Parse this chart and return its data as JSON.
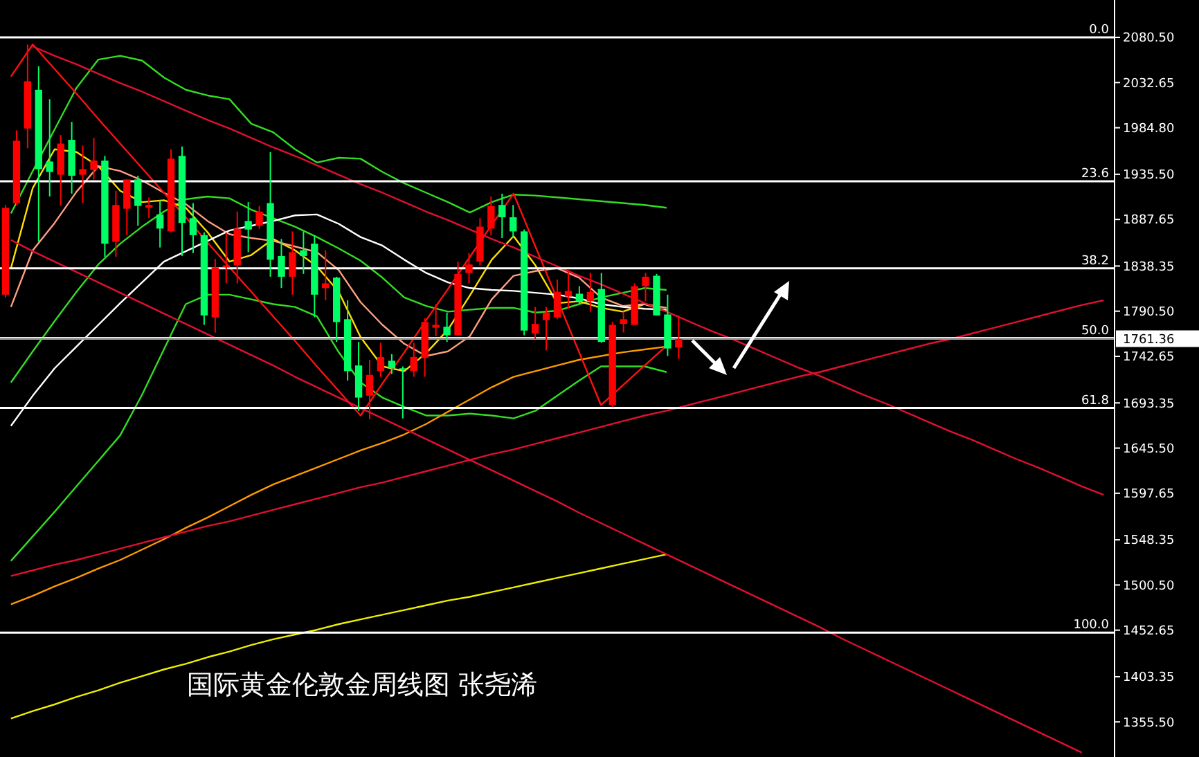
{
  "chart_data": [
    {
      "type": "candlestick",
      "title": "国际黄金伦敦金周线图 张尧浠",
      "categories": [
        null,
        null,
        null,
        null,
        null,
        null,
        null,
        null,
        null,
        null,
        null,
        null,
        null,
        null,
        null,
        null,
        null,
        null,
        null,
        null,
        null,
        null,
        null,
        null,
        null,
        null,
        null,
        null,
        null,
        null,
        null,
        null,
        null,
        null,
        null,
        null,
        null,
        null,
        null,
        null,
        null,
        null,
        null,
        null,
        null,
        null,
        null,
        null,
        null,
        null,
        null,
        null,
        null,
        null,
        null,
        null,
        null,
        null,
        null,
        null,
        null,
        null,
        null,
        null,
        null,
        null,
        null,
        null,
        null,
        null,
        null,
        null,
        null,
        null,
        null,
        null,
        null,
        null,
        null,
        null,
        null,
        null,
        null,
        null,
        null,
        null,
        null,
        null,
        null,
        null,
        null,
        null,
        null,
        null,
        null,
        null,
        null,
        null,
        null,
        null,
        null
      ],
      "ohlc": [
        [
          1808,
          1903,
          1805,
          1900
        ],
        [
          1905,
          1982,
          1903,
          1971
        ],
        [
          1984,
          2073,
          1963,
          2034
        ],
        [
          2025,
          2050,
          1864,
          1941
        ],
        [
          1949,
          2015,
          1912,
          1938
        ],
        [
          1935,
          1977,
          1902,
          1968
        ],
        [
          1972,
          1991,
          1915,
          1934
        ],
        [
          1935,
          1966,
          1905,
          1941
        ],
        [
          1940,
          1974,
          1930,
          1950
        ],
        [
          1950,
          1955,
          1848,
          1862
        ],
        [
          1864,
          1918,
          1848,
          1903
        ],
        [
          1899,
          1930,
          1871,
          1930
        ],
        [
          1930,
          1934,
          1881,
          1902
        ],
        [
          1900,
          1911,
          1889,
          1903
        ],
        [
          1893,
          1908,
          1858,
          1878
        ],
        [
          1875,
          1962,
          1874,
          1952
        ],
        [
          1955,
          1965,
          1849,
          1884
        ],
        [
          1889,
          1905,
          1852,
          1871
        ],
        [
          1871,
          1874,
          1776,
          1786
        ],
        [
          1784,
          1846,
          1768,
          1837
        ],
        [
          1837,
          1874,
          1820,
          1839
        ],
        [
          1839,
          1896,
          1820,
          1878
        ],
        [
          1886,
          1906,
          1853,
          1877
        ],
        [
          1881,
          1902,
          1878,
          1896
        ],
        [
          1905,
          1959,
          1827,
          1845
        ],
        [
          1849,
          1867,
          1815,
          1827
        ],
        [
          1827,
          1875,
          1808,
          1853
        ],
        [
          1855,
          1875,
          1830,
          1849
        ],
        [
          1862,
          1871,
          1784,
          1808
        ],
        [
          1815,
          1855,
          1802,
          1820
        ],
        [
          1826,
          1827,
          1758,
          1779
        ],
        [
          1782,
          1802,
          1717,
          1727
        ],
        [
          1733,
          1758,
          1685,
          1699
        ],
        [
          1701,
          1739,
          1676,
          1723
        ],
        [
          1727,
          1757,
          1721,
          1742
        ],
        [
          1738,
          1745,
          1724,
          1730
        ],
        [
          1730,
          1732,
          1677,
          1729
        ],
        [
          1727,
          1757,
          1721,
          1742
        ],
        [
          1741,
          1783,
          1721,
          1779
        ],
        [
          1773,
          1798,
          1764,
          1776
        ],
        [
          1774,
          1789,
          1758,
          1765
        ],
        [
          1765,
          1843,
          1765,
          1830
        ],
        [
          1831,
          1852,
          1820,
          1840
        ],
        [
          1843,
          1889,
          1839,
          1880
        ],
        [
          1878,
          1912,
          1871,
          1902
        ],
        [
          1903,
          1915,
          1868,
          1890
        ],
        [
          1890,
          1903,
          1868,
          1875
        ],
        [
          1875,
          1877,
          1765,
          1770
        ],
        [
          1767,
          1795,
          1761,
          1777
        ],
        [
          1781,
          1795,
          1749,
          1789
        ],
        [
          1784,
          1824,
          1782,
          1811
        ],
        [
          1806,
          1834,
          1793,
          1812
        ],
        [
          1809,
          1817,
          1798,
          1801
        ],
        [
          1801,
          1831,
          1790,
          1811
        ],
        [
          1814,
          1831,
          1757,
          1758
        ],
        [
          1691,
          1779,
          1689,
          1776
        ],
        [
          1777,
          1790,
          1768,
          1782
        ],
        [
          1776,
          1820,
          1776,
          1817
        ],
        [
          1817,
          1831,
          1801,
          1827
        ],
        [
          1828,
          1830,
          1786,
          1786
        ],
        [
          1787,
          1808,
          1743,
          1751
        ],
        [
          1752,
          1786,
          1740,
          1761
        ],
        null,
        null,
        null,
        null,
        null,
        null,
        null,
        null,
        null,
        null,
        null,
        null,
        null,
        null,
        null,
        null,
        null,
        null,
        null,
        null,
        null,
        null,
        null,
        null,
        null,
        null,
        null,
        null,
        null,
        null,
        null,
        null,
        null,
        null,
        null,
        null,
        null,
        null,
        null
      ],
      "colors": [
        "#ff0000",
        "#ff0000",
        "#ff0000",
        "#00ff66",
        "#00ff66",
        "#ff0000",
        "#00ff66",
        "#ff0000",
        "#ff0000",
        "#00ff66",
        "#ff0000",
        "#ff0000",
        "#00ff66",
        "#ff0000",
        "#00ff66",
        "#ff0000",
        "#00ff66",
        "#00ff66",
        "#00ff66",
        "#ff0000",
        "#ff0000",
        "#ff0000",
        "#00ff66",
        "#ff0000",
        "#00ff66",
        "#00ff66",
        "#ff0000",
        "#00ff66",
        "#00ff66",
        "#ff0000",
        "#00ff66",
        "#00ff66",
        "#00ff66",
        "#ff0000",
        "#ff0000",
        "#00ff66",
        "#00ff66",
        "#ff0000",
        "#ff0000",
        "#ff0000",
        "#00ff66",
        "#ff0000",
        "#ff0000",
        "#ff0000",
        "#ff0000",
        "#00ff66",
        "#00ff66",
        "#00ff66",
        "#ff0000",
        "#ff0000",
        "#ff0000",
        "#ff0000",
        "#00ff66",
        "#ff0000",
        "#00ff66",
        "#ff0000",
        "#ff0000",
        "#ff0000",
        "#ff0000",
        "#00ff66",
        "#00ff66",
        "#ff0000",
        null,
        null,
        null,
        null,
        null,
        null,
        null,
        null,
        null,
        null,
        null,
        null,
        null,
        null,
        null,
        null,
        null,
        null,
        null,
        null,
        null,
        null,
        null,
        null,
        null,
        null,
        null,
        null,
        null,
        null,
        null,
        null,
        null,
        null,
        null,
        null,
        null,
        null,
        null
      ],
      "ylim": [
        1318.3,
        2120.1
      ],
      "tick_labels": "y",
      "yticks": [
        {
          "value": 2080.5,
          "label": "2080.50"
        },
        {
          "value": 2032.65,
          "label": "2032.65"
        },
        {
          "value": 1984.8,
          "label": "1984.80"
        },
        {
          "value": 1935.5,
          "label": "1935.50"
        },
        {
          "value": 1887.65,
          "label": "1887.65"
        },
        {
          "value": 1838.35,
          "label": "1838.35"
        },
        {
          "value": 1790.5,
          "label": "1790.50"
        },
        {
          "value": 1742.65,
          "label": "1742.65"
        },
        {
          "value": 1693.35,
          "label": "1693.35"
        },
        {
          "value": 1645.5,
          "label": "1645.50"
        },
        {
          "value": 1597.65,
          "label": "1597.65"
        },
        {
          "value": 1548.35,
          "label": "1548.35"
        },
        {
          "value": 1500.5,
          "label": "1500.50"
        },
        {
          "value": 1452.65,
          "label": "1452.65"
        },
        {
          "value": 1403.35,
          "label": "1403.35"
        },
        {
          "value": 1355.5,
          "label": "1355.50"
        }
      ],
      "ref_lines": [
        {
          "axis": "y",
          "value": 2080.5,
          "color": "#ffffff"
        },
        {
          "axis": "y",
          "value": 1928,
          "color": "#ffffff"
        },
        {
          "axis": "y",
          "value": 1836,
          "color": "#ffffff"
        },
        {
          "axis": "y",
          "value": 1762,
          "color": "#ffffff"
        },
        {
          "axis": "y",
          "value": 1688,
          "color": "#ffffff"
        },
        {
          "axis": "y",
          "value": 1450,
          "color": "#ffffff"
        },
        {
          "axis": "y",
          "value": 1761.36,
          "label": "1761.36",
          "color": "#9a9a9a"
        }
      ],
      "annotations": [
        {
          "text": "0.0",
          "y": 2080.5
        },
        {
          "text": "23.6",
          "y": 1928
        },
        {
          "text": "38.2",
          "y": 1836
        },
        {
          "text": "50.0",
          "y": 1762
        },
        {
          "text": "61.8",
          "y": 1688
        },
        {
          "text": "100.0",
          "y": 1450
        }
      ]
    },
    {
      "type": "line",
      "ylim": [
        1318.3,
        2120.1
      ],
      "tick_labels": false,
      "categories": [
        null,
        null,
        null,
        null,
        null,
        null,
        null,
        null,
        null,
        null,
        null,
        null,
        null,
        null,
        null,
        null,
        null,
        null,
        null,
        null,
        null,
        null,
        null,
        null,
        null,
        null,
        null,
        null,
        null,
        null,
        null,
        null,
        null,
        null,
        null,
        null,
        null,
        null,
        null,
        null,
        null,
        null,
        null,
        null,
        null,
        null,
        null,
        null,
        null,
        null,
        null
      ],
      "series": [
        {
          "color": "#33dd22",
          "values": [
            1894,
            1939,
            1983,
            2027,
            2057,
            2061,
            2056,
            2038,
            2025,
            2019,
            2015,
            1989,
            1980,
            1962,
            1948,
            1953,
            1952,
            1938,
            1926,
            1916,
            1906,
            1895,
            1906,
            1914,
            1913,
            1911,
            1909,
            1907,
            1905,
            1903,
            1900,
            null,
            null,
            null,
            null,
            null,
            null,
            null,
            null,
            null,
            null,
            null,
            null,
            null,
            null,
            null,
            null,
            null,
            null,
            null,
            null
          ]
        },
        {
          "color": "#33dd22",
          "values": [
            1715,
            1748,
            1780,
            1811,
            1840,
            1862,
            1880,
            1896,
            1909,
            1912,
            1910,
            1898,
            1889,
            1880,
            1869,
            1857,
            1844,
            1826,
            1805,
            1796,
            1790,
            1792,
            1794,
            1794,
            1789,
            1791,
            1798,
            1805,
            1810,
            1815,
            1813,
            null,
            null,
            null,
            null,
            null,
            null,
            null,
            null,
            null,
            null,
            null,
            null,
            null,
            null,
            null,
            null,
            null,
            null,
            null,
            null
          ]
        },
        {
          "color": "#33dd22",
          "values": [
            1526,
            1552,
            1578,
            1605,
            1632,
            1659,
            1702,
            1750,
            1798,
            1808,
            1808,
            1803,
            1798,
            1795,
            1785,
            1747,
            1715,
            1699,
            1689,
            1680,
            1680,
            1682,
            1680,
            1677,
            1685,
            1701,
            1717,
            1732,
            1732,
            1732,
            1726,
            null,
            null,
            null,
            null,
            null,
            null,
            null,
            null,
            null,
            null,
            null,
            null,
            null,
            null,
            null,
            null,
            null,
            null,
            null,
            null
          ]
        },
        {
          "color": "#ffdd00",
          "values": [
            1836,
            1921,
            1962,
            1959,
            1944,
            1918,
            1906,
            1908,
            1900,
            1874,
            1843,
            1850,
            1867,
            1855,
            1838,
            1811,
            1763,
            1732,
            1727,
            1746,
            1771,
            1807,
            1845,
            1870,
            1839,
            1799,
            1801,
            1794,
            1790,
            1798,
            1791,
            null,
            null,
            null,
            null,
            null,
            null,
            null,
            null,
            null,
            null,
            null,
            null,
            null,
            null,
            null,
            null,
            null,
            null,
            null,
            null
          ]
        },
        {
          "color": "#ffa080",
          "values": [
            1795,
            1855,
            1884,
            1917,
            1944,
            1939,
            1929,
            1916,
            1904,
            1886,
            1872,
            1868,
            1865,
            1859,
            1853,
            1834,
            1800,
            1776,
            1756,
            1743,
            1748,
            1764,
            1803,
            1828,
            1833,
            1836,
            1826,
            1805,
            1796,
            1798,
            1794,
            null,
            null,
            null,
            null,
            null,
            null,
            null,
            null,
            null,
            null,
            null,
            null,
            null,
            null,
            null,
            null,
            null,
            null,
            null,
            null
          ]
        },
        {
          "color": "#ffffff",
          "values": [
            1669,
            1701,
            1730,
            1753,
            1776,
            1799,
            1821,
            1843,
            1854,
            1865,
            1876,
            1881,
            1886,
            1892,
            1893,
            1883,
            1869,
            1860,
            1845,
            1831,
            1821,
            1815,
            1813,
            1812,
            1810,
            1808,
            1804,
            1798,
            1795,
            1793,
            1792,
            null,
            null,
            null,
            null,
            null,
            null,
            null,
            null,
            null,
            null,
            null,
            null,
            null,
            null,
            null,
            null,
            null,
            null,
            null,
            null
          ]
        },
        {
          "color": "#ff9900",
          "values": [
            1480,
            1489,
            1499,
            1508,
            1518,
            1527,
            1538,
            1549,
            1561,
            1572,
            1584,
            1596,
            1607,
            1616,
            1625,
            1634,
            1643,
            1651,
            1660,
            1671,
            1684,
            1697,
            1710,
            1721,
            1727,
            1733,
            1739,
            1743,
            1747,
            1750,
            1753,
            null,
            null,
            null,
            null,
            null,
            null,
            null,
            null,
            null,
            null,
            null,
            null,
            null,
            null,
            null,
            null,
            null,
            null,
            null,
            null
          ]
        },
        {
          "color": "#eeee00",
          "values": [
            1359,
            1367,
            1374,
            1382,
            1389,
            1397,
            1404,
            1411,
            1417,
            1424,
            1430,
            1437,
            1443,
            1448,
            1453,
            1459,
            1464,
            1469,
            1474,
            1479,
            1484,
            1488,
            1493,
            1498,
            1503,
            1508,
            1513,
            1518,
            1523,
            1528,
            1533,
            null,
            null,
            null,
            null,
            null,
            null,
            null,
            null,
            null,
            null,
            null,
            null,
            null,
            null,
            null,
            null,
            null,
            null,
            null,
            null
          ]
        },
        {
          "color": "#ff1010",
          "values": [
            2039,
            2073,
            2047,
            2021,
            1994,
            1968,
            1942,
            1916,
            1890,
            1863,
            1837,
            1811,
            1785,
            1759,
            1732,
            1706,
            1680,
            1714,
            1747,
            1781,
            1814,
            1848,
            1882,
            1915,
            1859,
            1803,
            1747,
            1691,
            1712,
            1733,
            1754,
            null,
            null,
            null,
            null,
            null,
            null,
            null,
            null,
            null,
            null,
            null,
            null,
            null,
            null,
            null,
            null,
            null,
            null,
            null,
            null
          ]
        },
        {
          "color": "#e01030",
          "values": [
            null,
            2071,
            2061,
            2052,
            2042,
            2032,
            2023,
            2013,
            2003,
            1993,
            1984,
            1974,
            1964,
            1955,
            1945,
            1935,
            1925,
            1916,
            1906,
            1896,
            1887,
            1877,
            1867,
            1858,
            1848,
            1838,
            1828,
            1819,
            1809,
            1799,
            1790,
            1780,
            1770,
            1761,
            1751,
            1741,
            1731,
            1722,
            1712,
            1702,
            1693,
            1683,
            1673,
            1663,
            1654,
            1644,
            1634,
            1625,
            1615,
            1605,
            1596
          ]
        },
        {
          "color": "#e01030",
          "values": [
            1866,
            1854,
            1843,
            1832,
            1821,
            1810,
            1799,
            1788,
            1777,
            1766,
            1755,
            1744,
            1733,
            1721,
            1710,
            1699,
            1688,
            1677,
            1666,
            1655,
            1644,
            1633,
            1622,
            1611,
            1600,
            1589,
            1577,
            1566,
            1555,
            1544,
            1533,
            1522,
            1511,
            1500,
            1489,
            1478,
            1467,
            1456,
            1444,
            1433,
            1422,
            1411,
            1400,
            1389,
            1378,
            1367,
            1356,
            1345,
            1334,
            1323,
            null
          ]
        },
        {
          "color": "#e01030",
          "values": [
            1510,
            1516,
            1522,
            1527,
            1533,
            1539,
            1545,
            1551,
            1557,
            1563,
            1568,
            1574,
            1580,
            1586,
            1592,
            1598,
            1604,
            1609,
            1615,
            1621,
            1627,
            1633,
            1639,
            1644,
            1650,
            1656,
            1662,
            1668,
            1674,
            1680,
            1685,
            1691,
            1697,
            1703,
            1709,
            1715,
            1721,
            1726,
            1732,
            1738,
            1744,
            1750,
            1756,
            1761,
            1767,
            1773,
            1779,
            1785,
            1791,
            1797,
            1802
          ]
        }
      ]
    }
  ]
}
